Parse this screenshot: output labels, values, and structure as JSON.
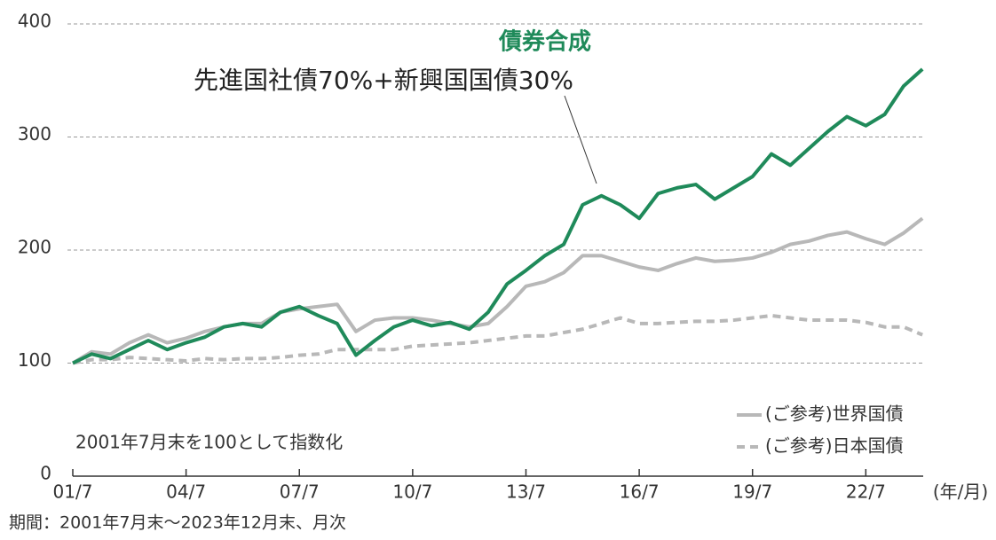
{
  "chart_data": {
    "type": "line",
    "title": "債券合成",
    "subtitle": "先進国社債70%+新興国国債30%",
    "note": "2001年7月末を100として指数化",
    "x_unit": "(年/月)",
    "footer": "期間：2001年7月末～2023年12月末、月次",
    "categories": [
      "01/7",
      null,
      null,
      null,
      null,
      null,
      "04/7",
      null,
      null,
      null,
      null,
      null,
      "07/7",
      null,
      null,
      null,
      null,
      null,
      "10/7",
      null,
      null,
      null,
      null,
      null,
      "13/7",
      null,
      null,
      null,
      null,
      null,
      "16/7",
      null,
      null,
      null,
      null,
      null,
      "19/7",
      null,
      null,
      null,
      null,
      null,
      "22/7",
      null,
      null,
      null
    ],
    "series": [
      {
        "name": "債券合成",
        "color": "#1f8a5a",
        "style": "solid",
        "values": [
          100,
          108,
          104,
          112,
          120,
          112,
          118,
          123,
          132,
          135,
          132,
          145,
          150,
          142,
          135,
          107,
          120,
          132,
          138,
          133,
          136,
          130,
          145,
          170,
          182,
          195,
          205,
          240,
          248,
          240,
          228,
          250,
          255,
          258,
          245,
          255,
          265,
          285,
          275,
          290,
          305,
          318,
          310,
          320,
          345,
          360
        ]
      },
      {
        "name": "(ご参考)世界国債",
        "color": "#b8b8b8",
        "style": "solid",
        "values": [
          100,
          110,
          108,
          118,
          125,
          118,
          122,
          128,
          132,
          135,
          135,
          145,
          148,
          150,
          152,
          128,
          138,
          140,
          140,
          138,
          135,
          132,
          135,
          150,
          168,
          172,
          180,
          195,
          195,
          190,
          185,
          182,
          188,
          193,
          190,
          191,
          193,
          198,
          205,
          208,
          213,
          216,
          210,
          205,
          215,
          228
        ]
      },
      {
        "name": "(ご参考)日本国債",
        "color": "#b8b8b8",
        "style": "dashed",
        "values": [
          100,
          103,
          103,
          105,
          104,
          103,
          102,
          104,
          103,
          104,
          104,
          105,
          107,
          108,
          112,
          112,
          112,
          112,
          115,
          116,
          117,
          118,
          120,
          122,
          124,
          124,
          127,
          130,
          135,
          140,
          135,
          135,
          136,
          137,
          137,
          138,
          140,
          142,
          140,
          138,
          138,
          138,
          136,
          132,
          132,
          125
        ]
      }
    ],
    "ylim": [
      0,
      400
    ],
    "yticks": [
      0,
      100,
      200,
      300,
      400
    ],
    "grid": true
  }
}
